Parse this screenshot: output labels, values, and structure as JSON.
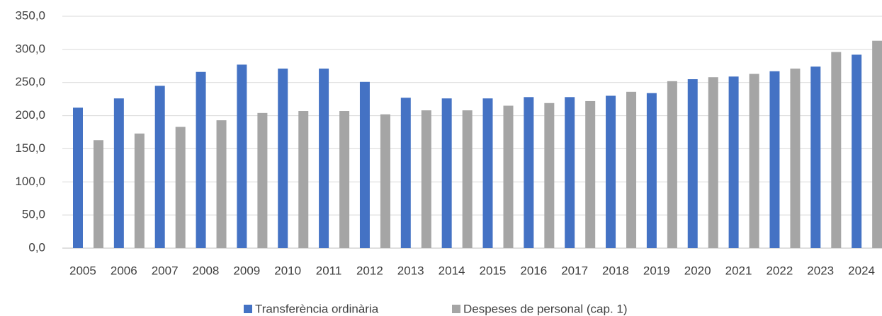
{
  "chart_data": {
    "type": "bar",
    "categories": [
      "2005",
      "2006",
      "2007",
      "2008",
      "2009",
      "2010",
      "2011",
      "2012",
      "2013",
      "2014",
      "2015",
      "2016",
      "2017",
      "2018",
      "2019",
      "2020",
      "2021",
      "2022",
      "2023",
      "2024"
    ],
    "series": [
      {
        "name": "Transferència ordinària",
        "color": "#4472c4",
        "values": [
          212,
          226,
          245,
          266,
          277,
          271,
          271,
          251,
          227,
          226,
          226,
          228,
          228,
          230,
          234,
          255,
          259,
          267,
          274,
          292
        ]
      },
      {
        "name": "Despeses de personal (cap. 1)",
        "color": "#a5a5a5",
        "values": [
          163,
          173,
          183,
          193,
          204,
          207,
          207,
          202,
          208,
          208,
          215,
          219,
          222,
          236,
          252,
          258,
          263,
          271,
          296,
          313
        ]
      }
    ],
    "ylim": [
      0,
      350
    ],
    "yticks": [
      {
        "value": 0,
        "label": "0,0"
      },
      {
        "value": 50,
        "label": "50,0"
      },
      {
        "value": 100,
        "label": "100,0"
      },
      {
        "value": 150,
        "label": "150,0"
      },
      {
        "value": 200,
        "label": "200,0"
      },
      {
        "value": 250,
        "label": "250,0"
      },
      {
        "value": 300,
        "label": "300,0"
      },
      {
        "value": 350,
        "label": "350,0"
      }
    ],
    "grid": true,
    "legend": "bottom"
  }
}
